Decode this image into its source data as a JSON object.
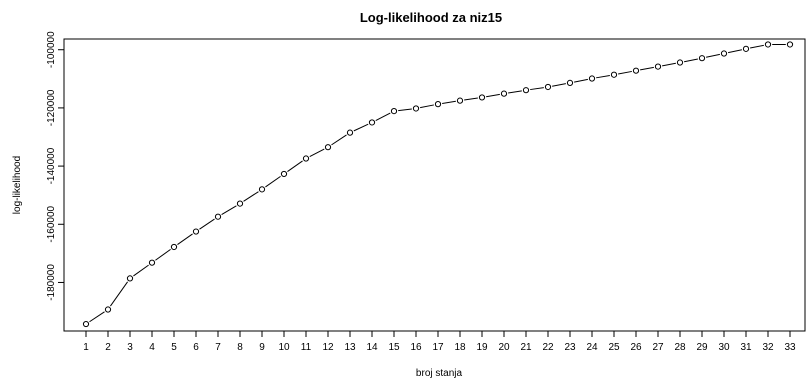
{
  "chart_data": {
    "type": "line",
    "title": "Log-likelihood za niz15",
    "xlabel": "broj stanja",
    "ylabel": "log-likelihood",
    "x": [
      1,
      2,
      3,
      4,
      5,
      6,
      7,
      8,
      9,
      10,
      11,
      12,
      13,
      14,
      15,
      16,
      17,
      18,
      19,
      20,
      21,
      22,
      23,
      24,
      25,
      26,
      27,
      28,
      29,
      30,
      31,
      32,
      33
    ],
    "values": [
      -194300,
      -189300,
      -178600,
      -173200,
      -167800,
      -162500,
      -157400,
      -152900,
      -148000,
      -142700,
      -137400,
      -133500,
      -128500,
      -125000,
      -121100,
      -120200,
      -118700,
      -117500,
      -116400,
      -115100,
      -113900,
      -112800,
      -111400,
      -109900,
      -108600,
      -107200,
      -105800,
      -104400,
      -102900,
      -101300,
      -99700,
      -98200,
      -98200
    ],
    "xlim": [
      1,
      33
    ],
    "ylim": [
      -196000,
      -97000
    ],
    "y_ticks": [
      -180000,
      -160000,
      -140000,
      -120000,
      -100000
    ],
    "y_tick_labels": [
      "-180000",
      "-160000",
      "-140000",
      "-120000",
      "-100000"
    ],
    "x_ticks": [
      1,
      2,
      3,
      4,
      5,
      6,
      7,
      8,
      9,
      10,
      11,
      12,
      13,
      14,
      15,
      16,
      17,
      18,
      19,
      20,
      21,
      22,
      23,
      24,
      25,
      26,
      27,
      28,
      29,
      30,
      31,
      32,
      33
    ],
    "x_tick_labels": [
      "1",
      "2",
      "3",
      "4",
      "5",
      "6",
      "7",
      "8",
      "9",
      "10",
      "11",
      "12",
      "13",
      "14",
      "15",
      "16",
      "17",
      "18",
      "19",
      "20",
      "21",
      "22",
      "23",
      "24",
      "25",
      "26",
      "27",
      "28",
      "29",
      "30",
      "31",
      "32",
      "33"
    ],
    "markers": "open-circle",
    "grid": false,
    "line_color": "#000000"
  }
}
